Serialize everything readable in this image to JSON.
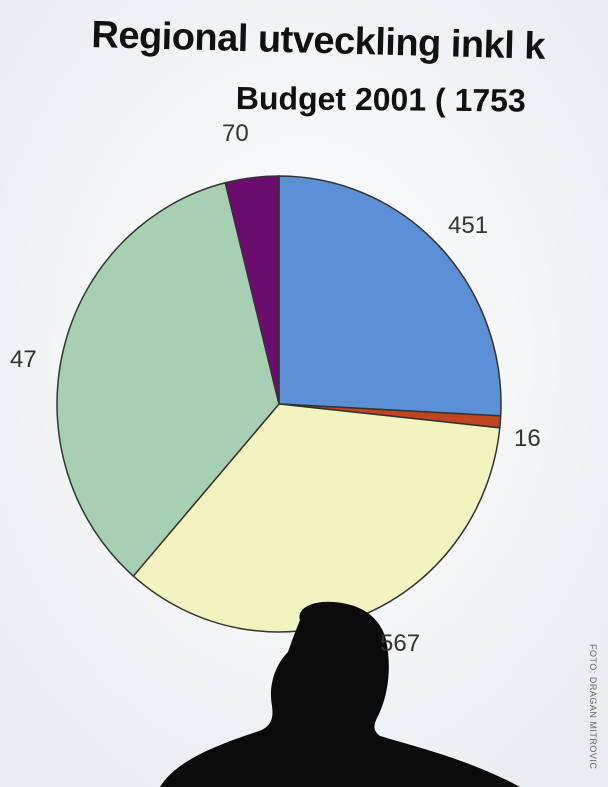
{
  "scene": {
    "title_line_1": "Regional utveckling inkl  k",
    "title_line_2": "Budget 2001 ( 1753",
    "photo_credit": "FOTO: DRAGAN MITROVIC"
  },
  "chart_data": {
    "type": "pie",
    "title": "Regional utveckling inkl  k",
    "subtitle": "Budget 2001 ( 1753",
    "slices": [
      {
        "label": "451",
        "value": 451,
        "color": "#5b8fd6"
      },
      {
        "label": "16",
        "value": 16,
        "color": "#c0451c"
      },
      {
        "label": "567",
        "value": 567,
        "color": "#f2f3bf"
      },
      {
        "label": "47",
        "value": 47,
        "color": "#a7cfb2"
      },
      {
        "label": "70",
        "value": 70,
        "color": "#6a0d6e"
      }
    ]
  },
  "colors": {
    "projector_screen": "#f4f6f8",
    "silhouette": "#0a0a0a",
    "pie_outline": "#333333"
  }
}
